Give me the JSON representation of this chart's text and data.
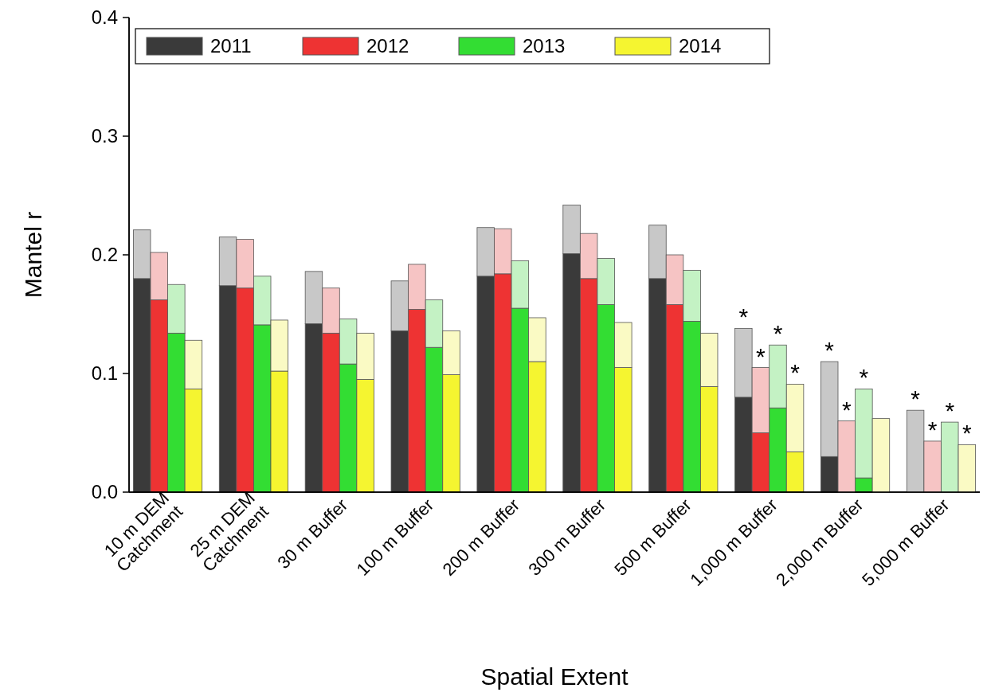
{
  "chart_data": [
    {
      "type": "bar",
      "xlabel": "Spatial Extent",
      "ylabel": "Mantel r",
      "categories": [
        "10 m DEM\nCatchment",
        "25 m DEM\nCatchment",
        "30 m Buffer",
        "100 m Buffer",
        "200 m Buffer",
        "300 m Buffer",
        "500 m Buffer",
        "1,000 m Buffer",
        "2,000 m Buffer",
        "5,000 m Buffer"
      ],
      "ylim": [
        0,
        0.4
      ],
      "yticks": [
        {
          "value": 0,
          "label": "0.0"
        },
        0.1,
        0.2,
        0.3,
        0.4
      ],
      "legend": "top left",
      "series": [
        {
          "name": "2011",
          "color": "#3a3a3a",
          "values": [
            0.18,
            0.174,
            0.142,
            0.136,
            0.182,
            0.201,
            0.18,
            0.08,
            0.03,
            null
          ]
        },
        {
          "name": "2012",
          "color": "#ee3333",
          "values": [
            0.162,
            0.172,
            0.134,
            0.154,
            0.184,
            0.18,
            0.158,
            0.05,
            null,
            null
          ]
        },
        {
          "name": "2013",
          "color": "#33dd33",
          "values": [
            0.134,
            0.141,
            0.108,
            0.122,
            0.155,
            0.158,
            0.144,
            0.071,
            0.012,
            null
          ]
        },
        {
          "name": "2014",
          "color": "#f5f530",
          "values": [
            0.087,
            0.102,
            0.095,
            0.099,
            0.11,
            0.105,
            0.089,
            0.034,
            null,
            null
          ]
        }
      ]
    },
    {
      "type": "bar",
      "categories": [
        null,
        null,
        null,
        null,
        null,
        null,
        null,
        null,
        null,
        null
      ],
      "ylim": [
        0,
        0.4
      ],
      "series": [
        {
          "color": "#c8c8c8",
          "base": [
            0.18,
            0.174,
            0.142,
            0.136,
            0.182,
            0.201,
            0.18,
            0.08,
            0.03,
            0
          ],
          "values": [
            0.041,
            0.041,
            0.044,
            0.042,
            0.041,
            0.041,
            0.045,
            0.058,
            0.08,
            0.069
          ],
          "value_labels": [
            null,
            null,
            null,
            null,
            null,
            null,
            null,
            "*",
            "*",
            "*"
          ]
        },
        {
          "color": "#f6c4c4",
          "base": [
            0.162,
            0.172,
            0.134,
            0.154,
            0.184,
            0.18,
            0.158,
            0.05,
            0,
            0
          ],
          "values": [
            0.04,
            0.041,
            0.038,
            0.038,
            0.038,
            0.038,
            0.042,
            0.055,
            0.06,
            0.043
          ],
          "value_labels": [
            null,
            null,
            null,
            null,
            null,
            null,
            null,
            "*",
            "*",
            "*"
          ]
        },
        {
          "color": "#c4f2c4",
          "base": [
            0.134,
            0.141,
            0.108,
            0.122,
            0.155,
            0.158,
            0.144,
            0.071,
            0.012,
            0
          ],
          "values": [
            0.041,
            0.041,
            0.038,
            0.04,
            0.04,
            0.039,
            0.043,
            0.053,
            0.075,
            0.059
          ],
          "value_labels": [
            null,
            null,
            null,
            null,
            null,
            null,
            null,
            "*",
            "*",
            "*"
          ]
        },
        {
          "color": "#fafac4",
          "base": [
            0.087,
            0.102,
            0.095,
            0.099,
            0.11,
            0.105,
            0.089,
            0.034,
            0,
            0
          ],
          "values": [
            0.041,
            0.043,
            0.039,
            0.037,
            0.037,
            0.038,
            0.045,
            0.057,
            0.062,
            0.04
          ],
          "value_labels": [
            null,
            null,
            null,
            null,
            null,
            null,
            null,
            "*",
            null,
            "*"
          ]
        }
      ]
    }
  ]
}
